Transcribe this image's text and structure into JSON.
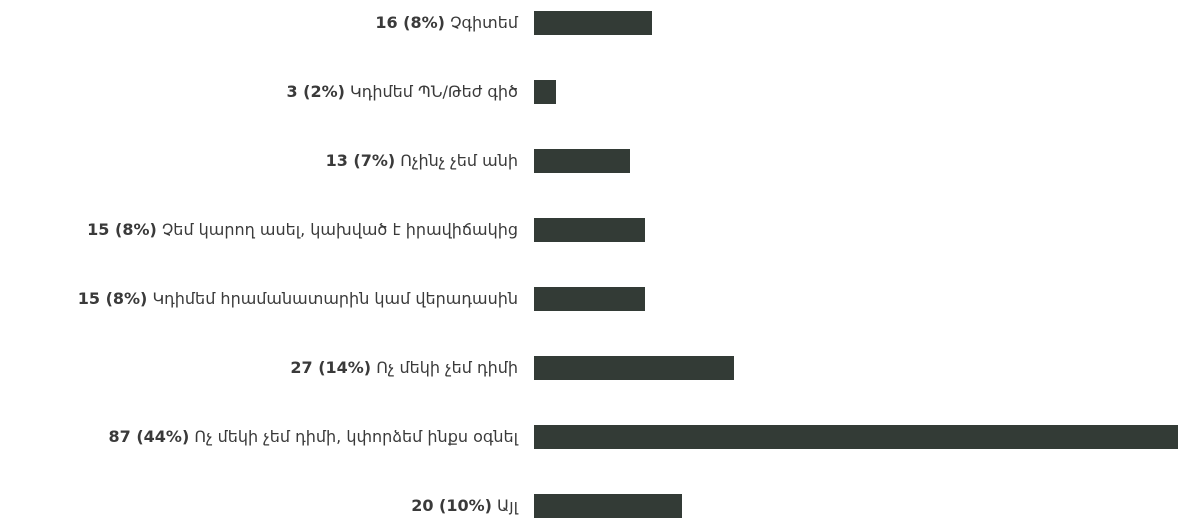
{
  "chart_data": {
    "type": "bar",
    "orientation": "horizontal",
    "bar_color": "#333b36",
    "label_color": "#3a3a3a",
    "max_value": 87,
    "categories": [
      "Չգիտեմ",
      "Կդիմեմ ՊՆ/Թեժ գիծ",
      "Ոչինչ չեմ անի",
      "Չեմ կարող ասել, կախված է իրավիճակից",
      "Կդիմեմ հրամանատարին կամ վերադասին",
      "Ոչ մեկի չեմ դիմի",
      "Ոչ մեկի չեմ դիմի, կփորձեմ ինքս օգնել",
      "Այլ"
    ],
    "values": [
      16,
      3,
      13,
      15,
      15,
      27,
      87,
      20
    ],
    "value_labels": [
      "16 (8%)",
      "3 (2%)",
      "13 (7%)",
      "15 (8%)",
      "15 (8%)",
      "27 (14%)",
      "87 (44%)",
      "20 (10%)"
    ]
  }
}
